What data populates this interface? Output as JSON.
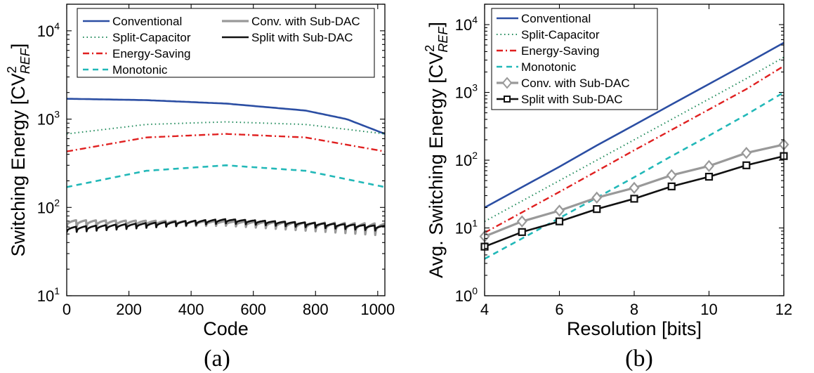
{
  "panel_labels": [
    "(a)",
    "(b)"
  ],
  "ylabel_prefix": "Switching Energy [CV",
  "ylabel_b_prefix": "Avg. Switching Energy [CV",
  "ylabel_sup": "2",
  "ylabel_sub": "REF",
  "ylabel_suffix": "]",
  "colors": {
    "conventional": "#2b4ea3",
    "split_capacitor": "#1f8a5a",
    "energy_saving": "#e02020",
    "monotonic": "#22b8b8",
    "conv_sub_dac": "#999999",
    "split_sub_dac": "#111111"
  },
  "chart_data": [
    {
      "type": "line",
      "xlabel": "Code",
      "ylabel": "Switching Energy [CV²REF]",
      "yscale": "log",
      "xlim": [
        0,
        1023
      ],
      "ylim": [
        10,
        20000
      ],
      "xticks": [
        "0",
        "200",
        "400",
        "600",
        "800",
        "1000"
      ],
      "ytick_exponents": [
        "1",
        "2",
        "3",
        "4"
      ],
      "legend_position": "top",
      "series": [
        {
          "name": "Conventional",
          "x": [
            0,
            256,
            512,
            768,
            900,
            1023
          ],
          "values": [
            1700,
            1640,
            1500,
            1250,
            1000,
            680
          ]
        },
        {
          "name": "Split-Capacitor",
          "x": [
            0,
            256,
            512,
            768,
            1023
          ],
          "values": [
            680,
            870,
            930,
            870,
            680
          ]
        },
        {
          "name": "Energy-Saving",
          "x": [
            0,
            256,
            512,
            768,
            1023
          ],
          "values": [
            430,
            620,
            680,
            620,
            430
          ]
        },
        {
          "name": "Monotonic",
          "x": [
            0,
            256,
            512,
            768,
            1023
          ],
          "values": [
            170,
            260,
            300,
            260,
            170
          ]
        },
        {
          "name": "Conv. with Sub-DAC",
          "x": [
            0,
            512,
            1023
          ],
          "values": [
            72,
            70,
            66
          ],
          "sawtooth_low": [
            60,
            62,
            48
          ]
        },
        {
          "name": "Split with Sub-DAC",
          "x": [
            0,
            512,
            1023
          ],
          "values": [
            60,
            74,
            62
          ],
          "sawtooth_low": [
            52,
            66,
            54
          ]
        }
      ]
    },
    {
      "type": "line",
      "xlabel": "Resolution [bits]",
      "ylabel": "Avg. Switching Energy [CV²REF]",
      "yscale": "log",
      "xlim": [
        4,
        12
      ],
      "ylim": [
        1,
        20000
      ],
      "xticks": [
        "4",
        "6",
        "8",
        "10",
        "12"
      ],
      "ytick_exponents": [
        "0",
        "1",
        "2",
        "3",
        "4"
      ],
      "legend_position": "top-left",
      "x": [
        4,
        5,
        6,
        7,
        8,
        9,
        10,
        11,
        12
      ],
      "series": [
        {
          "name": "Conventional",
          "values": [
            20.0,
            40.0,
            80.0,
            165.0,
            330.0,
            665.0,
            1330.0,
            2660.0,
            5400.0
          ]
        },
        {
          "name": "Split-Capacitor",
          "values": [
            12.5,
            25.0,
            50.0,
            100.0,
            200.0,
            400.0,
            800.0,
            1600.0,
            3300.0
          ]
        },
        {
          "name": "Energy-Saving",
          "values": [
            8.5,
            17.0,
            34.0,
            69.0,
            140.0,
            280.0,
            560.0,
            1120.0,
            2450.0
          ]
        },
        {
          "name": "Monotonic",
          "values": [
            3.5,
            7.0,
            14.0,
            28.0,
            56.0,
            115.0,
            230.0,
            470.0,
            1000.0
          ]
        },
        {
          "name": "Conv. with Sub-DAC",
          "values": [
            7.5,
            12.5,
            18.0,
            28.0,
            39.0,
            60.0,
            82.0,
            128.0,
            170.0
          ]
        },
        {
          "name": "Split with Sub-DAC",
          "values": [
            5.3,
            8.7,
            12.5,
            19.0,
            27.0,
            41.0,
            57.0,
            84.0,
            115.0
          ]
        }
      ]
    }
  ]
}
